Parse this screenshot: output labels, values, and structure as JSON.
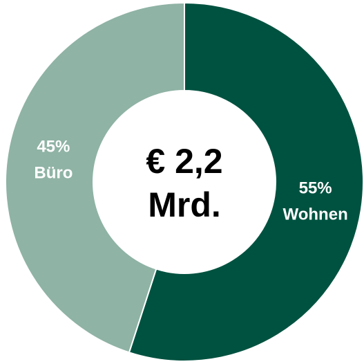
{
  "chart_data": {
    "type": "donut",
    "center_label": [
      "€ 2,2",
      "Mrd."
    ],
    "categories": [
      "Wohnen",
      "Büro"
    ],
    "values": [
      55,
      45
    ],
    "value_labels": [
      "55%",
      "45%"
    ],
    "colors": [
      "#005240",
      "#8fb3a5"
    ]
  }
}
